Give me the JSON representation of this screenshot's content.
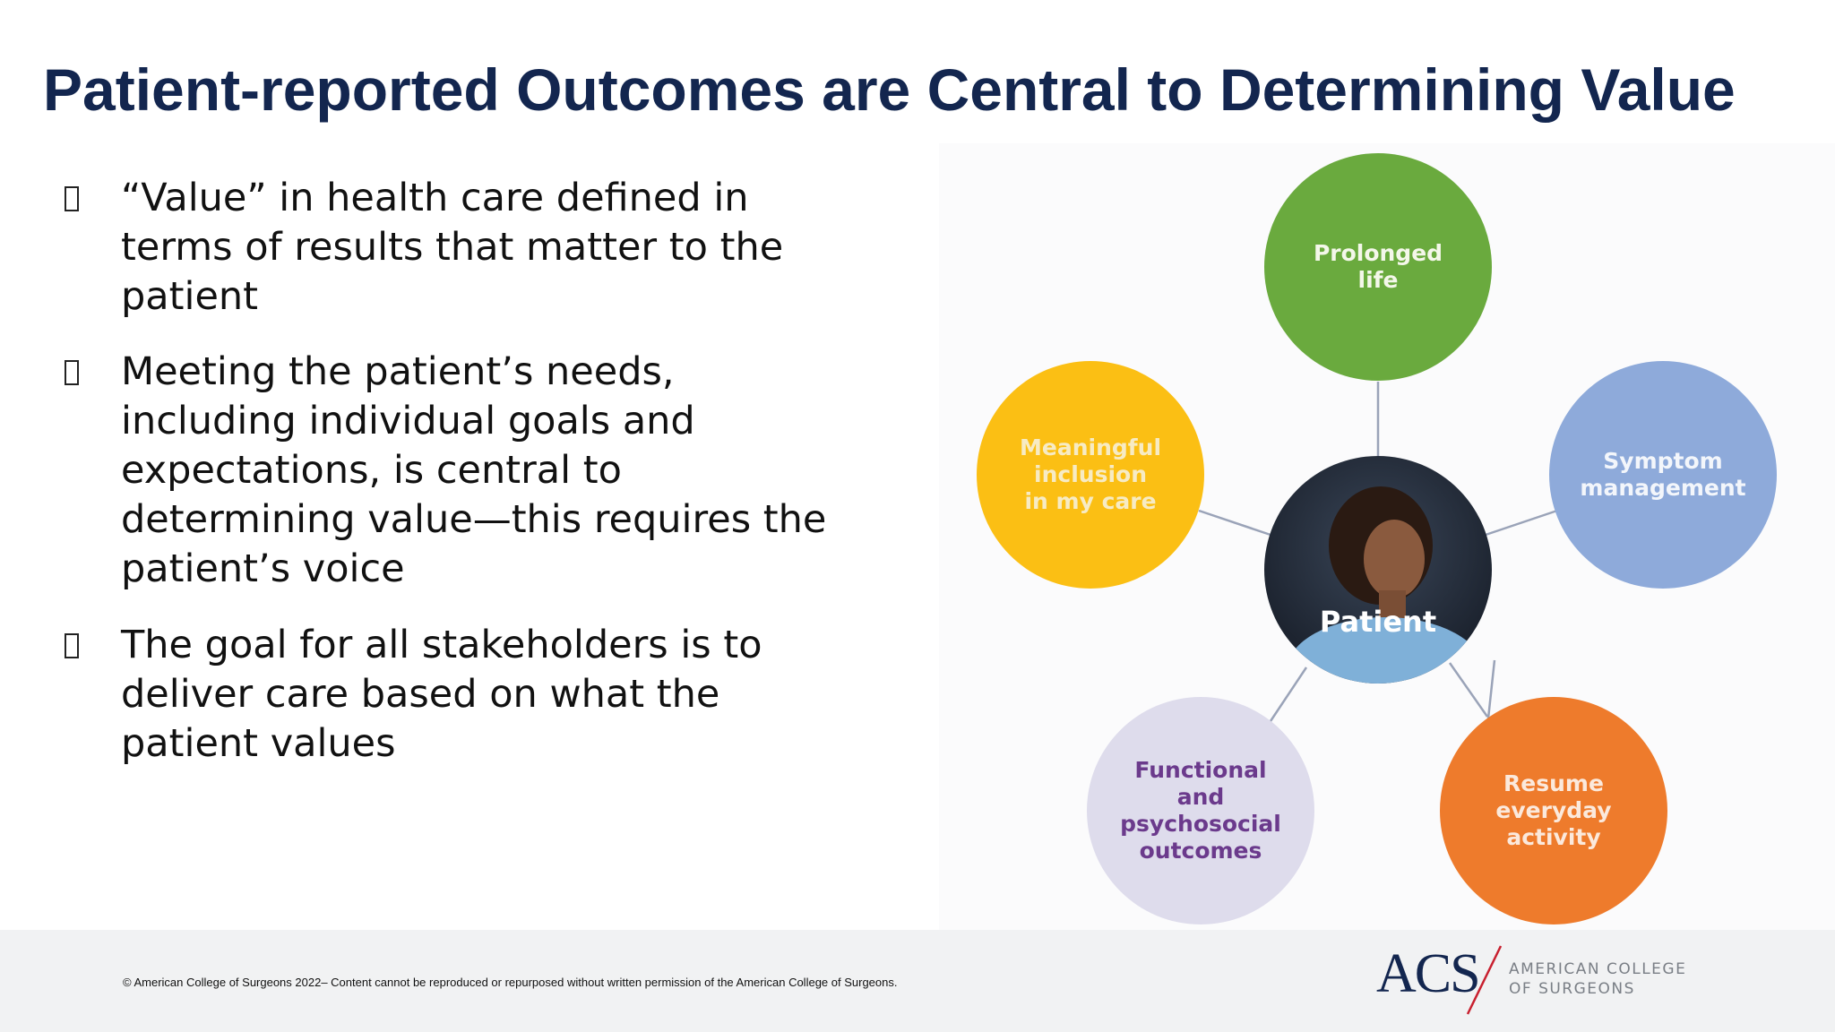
{
  "title": "Patient-reported Outcomes are Central to Determining Value",
  "bullets": [
    "“Value” in health care defined in terms of results that matter to the patient",
    "Meeting the patient’s needs, including individual goals and expectations, is central to determining value—this requires the patient’s voice",
    "The goal for all stakeholders is to deliver care based on what the patient values"
  ],
  "diagram": {
    "center": "Patient",
    "nodes": [
      "Prolonged life",
      "Symptom management",
      "Resume everyday activity",
      "Functional and psychosocial outcomes",
      "Meaningful inclusion in my care"
    ]
  },
  "footer": {
    "copyright": "© American College of Surgeons 2022– Content cannot be reproduced or repurposed without written permission of the American College of Surgeons.",
    "logo_mark": "ACS",
    "logo_line1": "AMERICAN COLLEGE",
    "logo_line2": "OF SURGEONS"
  }
}
